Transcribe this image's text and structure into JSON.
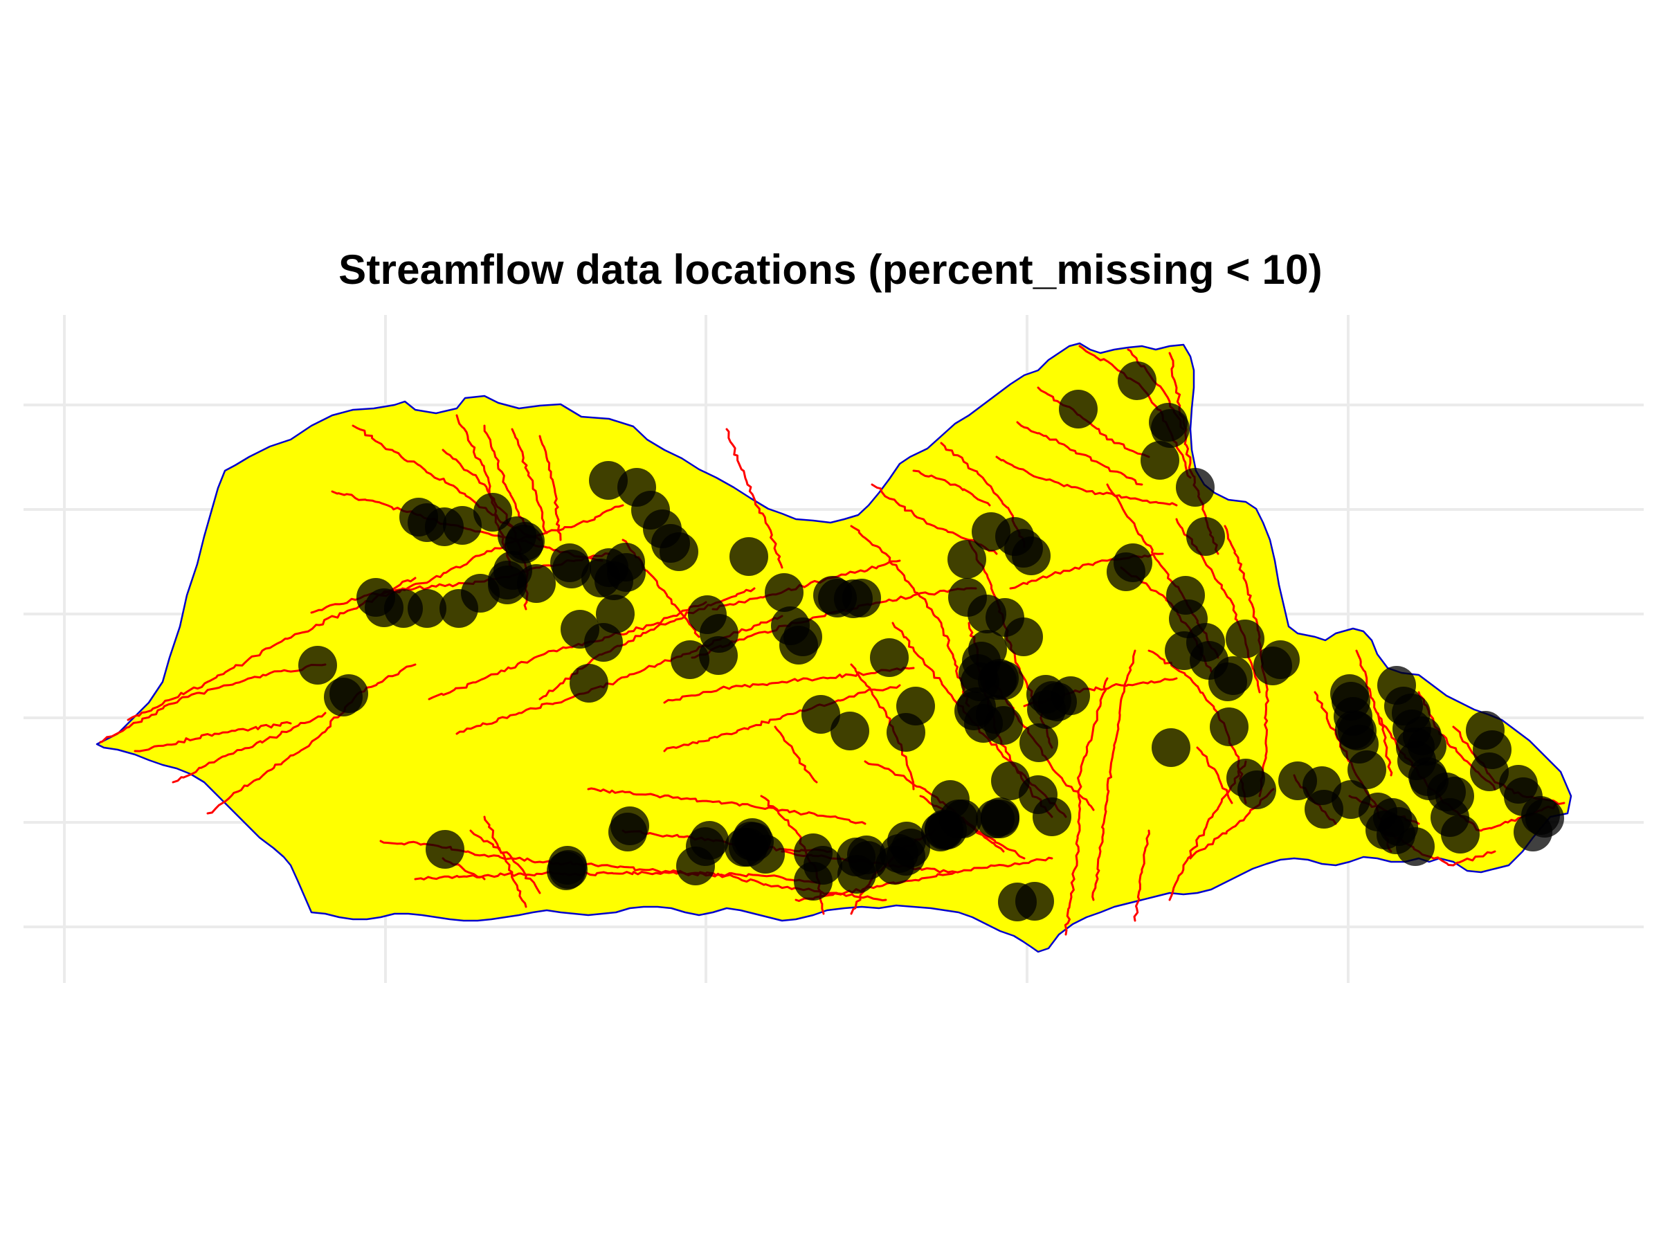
{
  "title": "Streamflow data locations (percent_missing < 10)",
  "colors": {
    "background": "#ffffff",
    "gridline": "#ebebeb",
    "basin_fill": "#ffff00",
    "basin_outline": "#0000cd",
    "stream": "#ff0000",
    "station": "#000000",
    "station_opacity": 0.75
  },
  "layers": {
    "basin": "watershed-boundary",
    "streams": "stream-network",
    "stations": "streamflow-gauge-stations"
  },
  "station_count": 170
}
